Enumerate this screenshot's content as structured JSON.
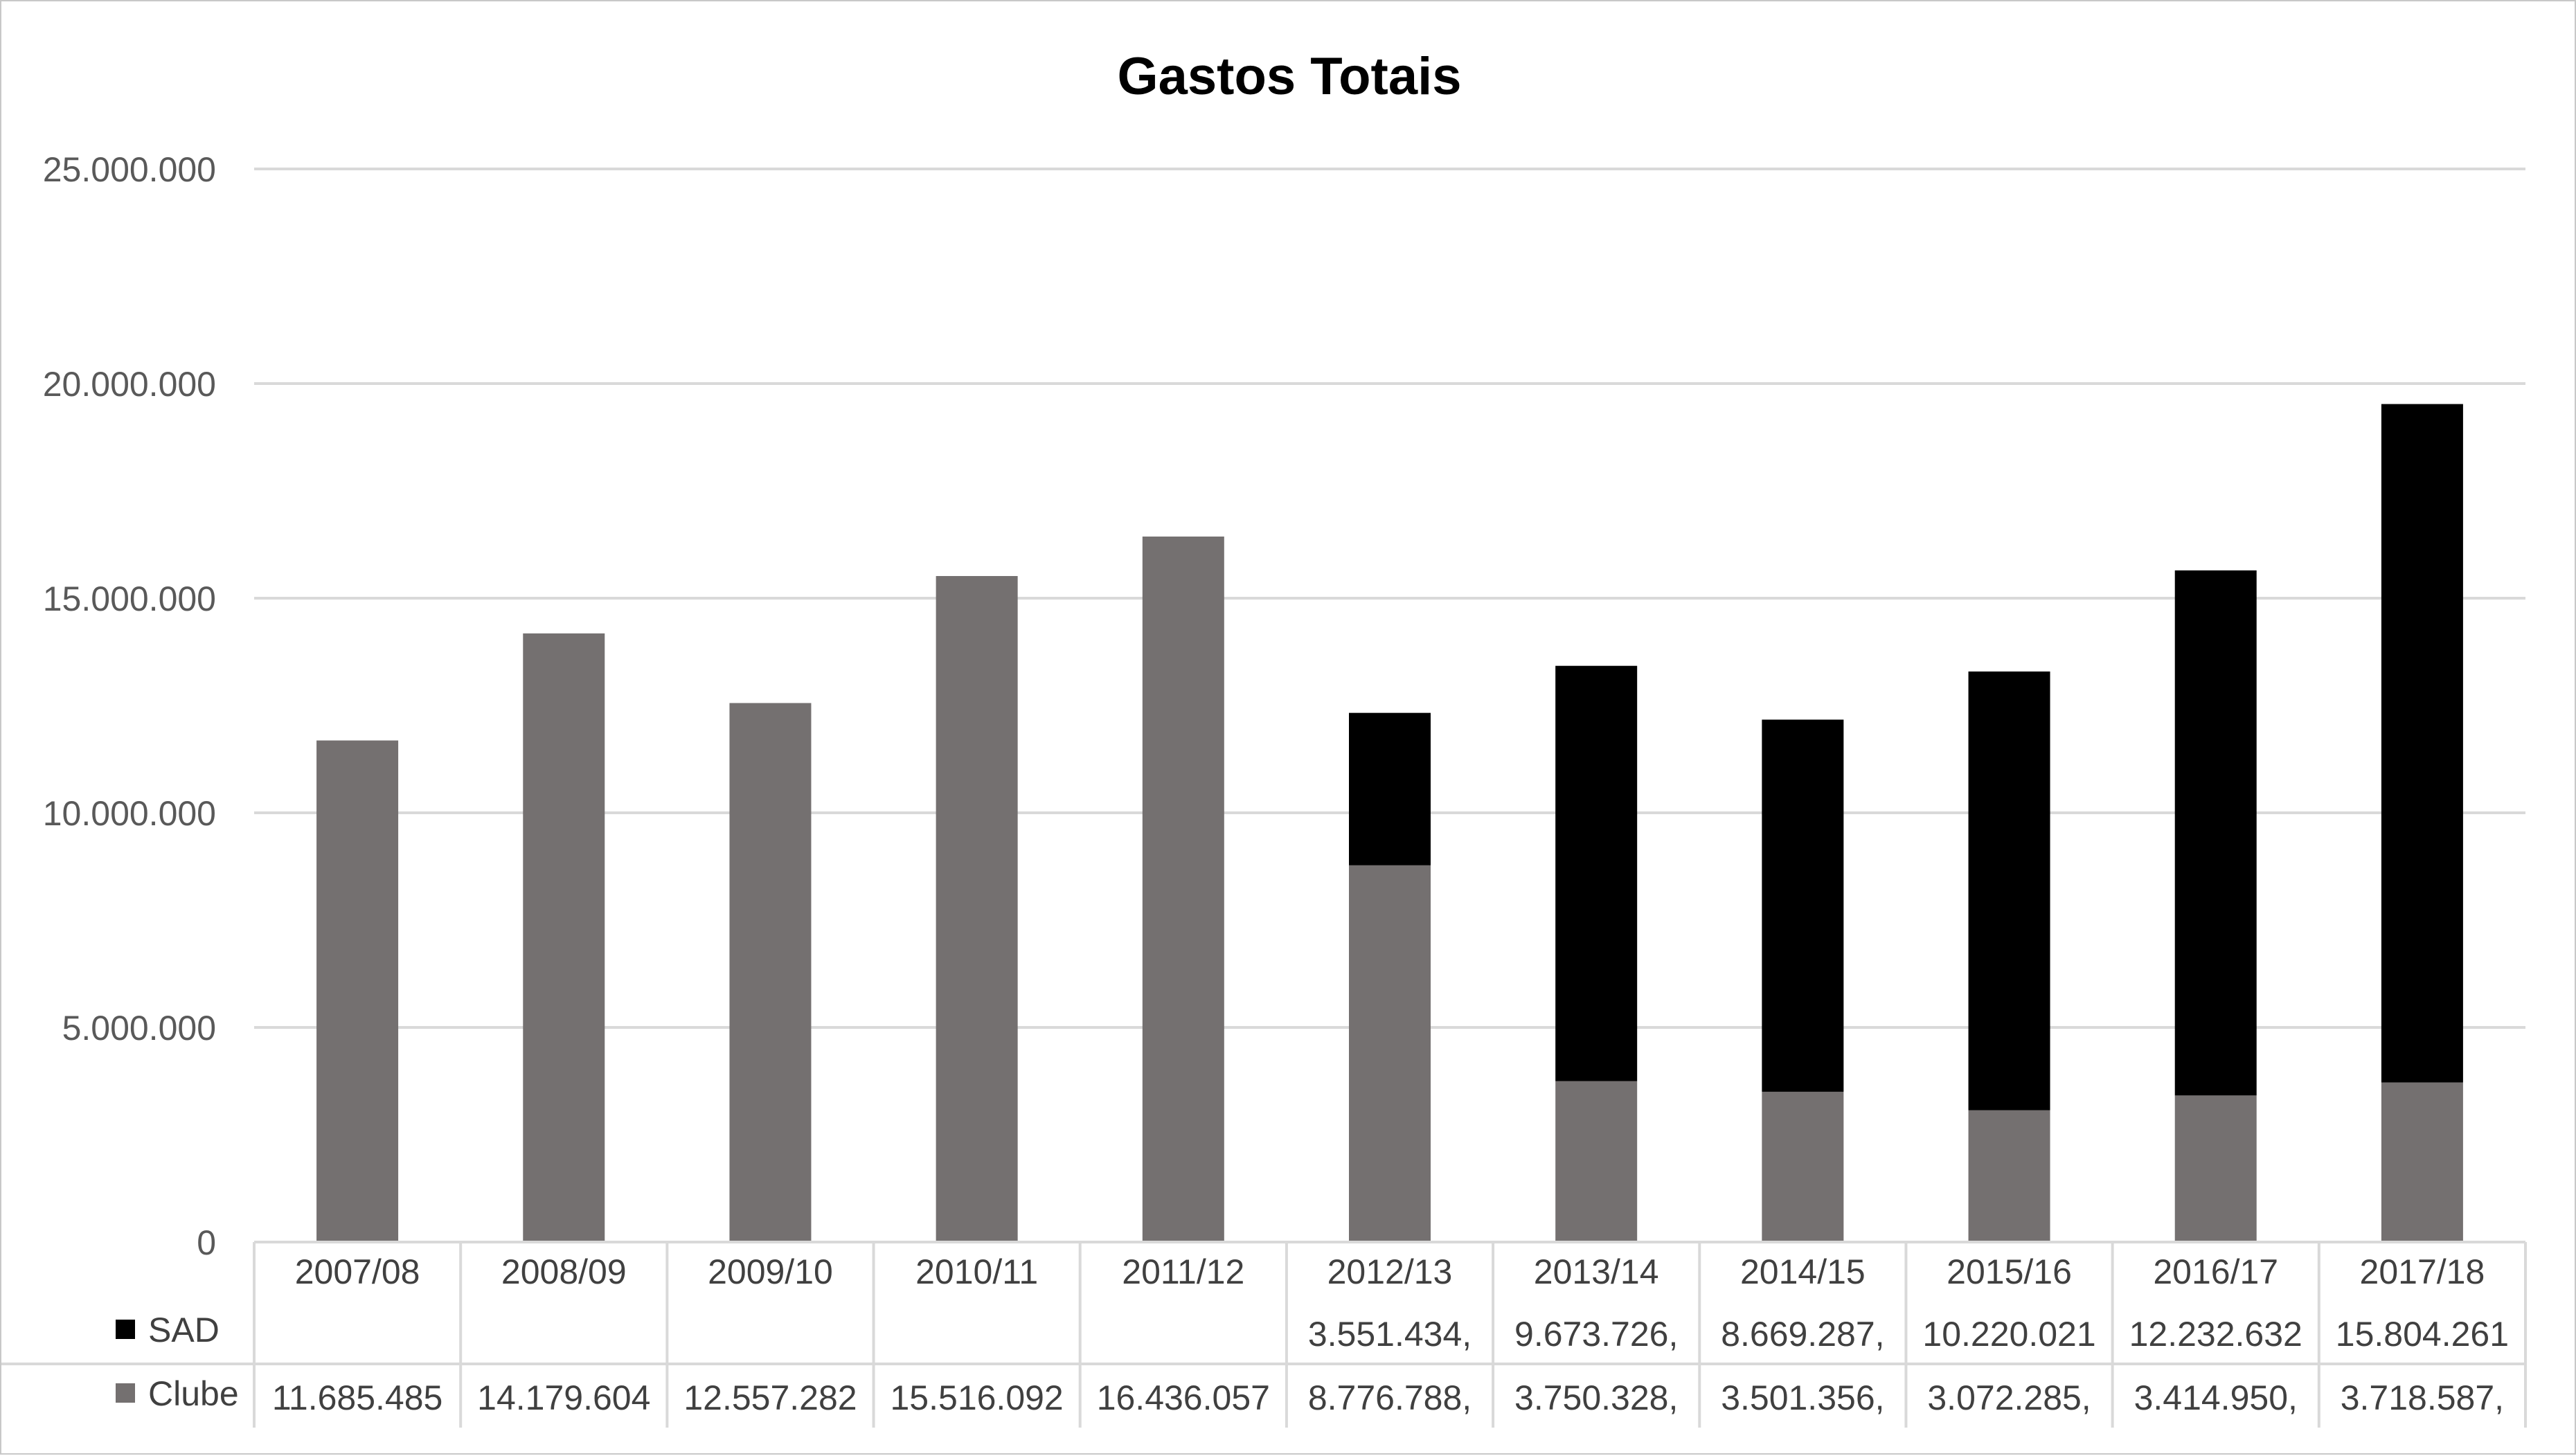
{
  "chart_data": {
    "type": "bar",
    "stacked": true,
    "title": "Gastos Totais",
    "xlabel": "",
    "ylabel": "",
    "ylim": [
      0,
      25000000
    ],
    "y_ticks": [
      0,
      5000000,
      10000000,
      15000000,
      20000000,
      25000000
    ],
    "y_tick_labels": [
      "0",
      "5.000.000",
      "10.000.000",
      "15.000.000",
      "20.000.000",
      "25.000.000"
    ],
    "grid": true,
    "legend": "data-table",
    "categories": [
      "2007/08",
      "2008/09",
      "2009/10",
      "2010/11",
      "2011/12",
      "2012/13",
      "2013/14",
      "2014/15",
      "2015/16",
      "2016/17",
      "2017/18"
    ],
    "series": [
      {
        "name": "Clube",
        "color": "#747070",
        "values": [
          11685485,
          14179604,
          12557282,
          15516092,
          16436057,
          8776788,
          3750328,
          3501356,
          3072285,
          3414950,
          3718587
        ],
        "labels": [
          "11.685.485",
          "14.179.604",
          "12.557.282",
          "15.516.092",
          "16.436.057",
          "8.776.788,",
          "3.750.328,",
          "3.501.356,",
          "3.072.285,",
          "3.414.950,",
          "3.718.587,"
        ]
      },
      {
        "name": "SAD",
        "color": "#000000",
        "values": [
          null,
          null,
          null,
          null,
          null,
          3551434,
          9673726,
          8669287,
          10220021,
          12232632,
          15804261
        ],
        "labels": [
          "",
          "",
          "",
          "",
          "",
          "3.551.434,",
          "9.673.726,",
          "8.669.287,",
          "10.220.021",
          "12.232.632",
          "15.804.261"
        ]
      }
    ]
  }
}
